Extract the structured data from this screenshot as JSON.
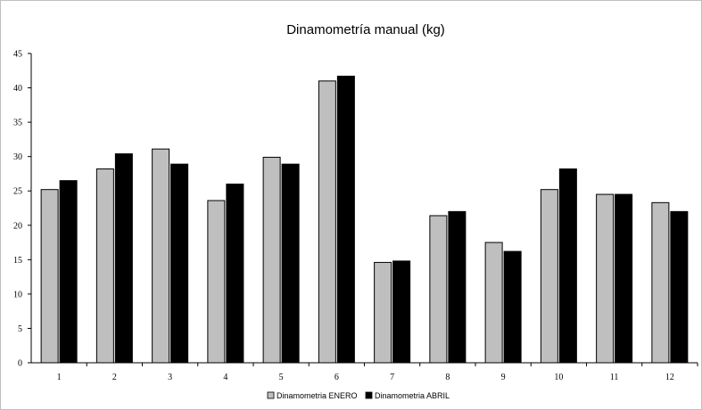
{
  "chart_data": {
    "type": "bar",
    "title": "Dinamometría manual (kg)",
    "xlabel": "",
    "ylabel": "",
    "ylim": [
      0,
      45
    ],
    "yticks": [
      0,
      5,
      10,
      15,
      20,
      25,
      30,
      35,
      40,
      45
    ],
    "categories": [
      "1",
      "2",
      "3",
      "4",
      "5",
      "6",
      "7",
      "8",
      "9",
      "10",
      "11",
      "12"
    ],
    "series": [
      {
        "name": "Dinamometria ENERO",
        "color": "#bfbfbf",
        "values": [
          25.2,
          28.2,
          31.1,
          23.6,
          29.9,
          41.0,
          14.6,
          21.4,
          17.5,
          25.2,
          24.5,
          23.3
        ]
      },
      {
        "name": "Dinamometria ABRIL",
        "color": "#000000",
        "values": [
          26.5,
          30.4,
          28.9,
          26.0,
          28.9,
          41.7,
          14.8,
          22.0,
          16.2,
          28.2,
          24.5,
          22.0
        ]
      }
    ],
    "grid": false,
    "legend_position": "bottom"
  }
}
